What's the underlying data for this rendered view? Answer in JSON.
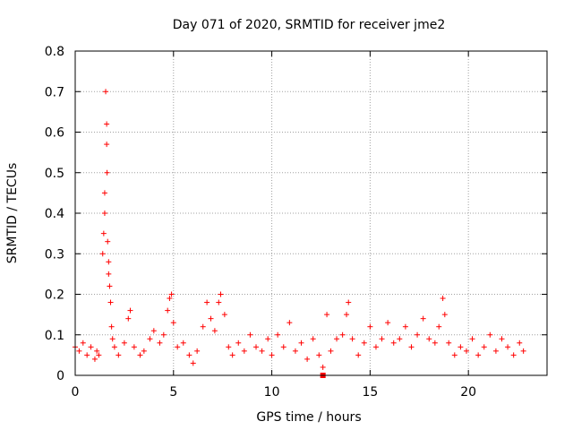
{
  "chart_data": {
    "type": "scatter",
    "title": "Day 071 of 2020, SRMTID for receiver jme2",
    "xlabel": "GPS time / hours",
    "ylabel": "SRMTID / TECUs",
    "xlim": [
      0,
      24
    ],
    "ylim": [
      0,
      0.8
    ],
    "xticks": [
      0,
      5,
      10,
      15,
      20
    ],
    "xtick_labels": [
      "0",
      "5",
      "10",
      "15",
      "20"
    ],
    "yticks": [
      0,
      0.1,
      0.2,
      0.3,
      0.4,
      0.5,
      0.6,
      0.7,
      0.8
    ],
    "ytick_labels": [
      "0",
      "0.1",
      "0.2",
      "0.3",
      "0.4",
      "0.5",
      "0.6",
      "0.7",
      "0.8"
    ],
    "grid": true,
    "marker": "+",
    "series_color": "#ff0000",
    "series": [
      {
        "name": "SRMTID",
        "points": [
          [
            0.0,
            0.07
          ],
          [
            0.2,
            0.06
          ],
          [
            0.4,
            0.08
          ],
          [
            0.6,
            0.05
          ],
          [
            0.8,
            0.07
          ],
          [
            1.0,
            0.04
          ],
          [
            1.1,
            0.06
          ],
          [
            1.2,
            0.05
          ],
          [
            1.4,
            0.3
          ],
          [
            1.45,
            0.35
          ],
          [
            1.5,
            0.4
          ],
          [
            1.5,
            0.45
          ],
          [
            1.55,
            0.7
          ],
          [
            1.6,
            0.62
          ],
          [
            1.6,
            0.57
          ],
          [
            1.62,
            0.5
          ],
          [
            1.65,
            0.33
          ],
          [
            1.7,
            0.28
          ],
          [
            1.7,
            0.25
          ],
          [
            1.75,
            0.22
          ],
          [
            1.8,
            0.18
          ],
          [
            1.85,
            0.12
          ],
          [
            1.9,
            0.09
          ],
          [
            2.0,
            0.07
          ],
          [
            2.2,
            0.05
          ],
          [
            2.5,
            0.08
          ],
          [
            2.7,
            0.14
          ],
          [
            2.8,
            0.16
          ],
          [
            3.0,
            0.07
          ],
          [
            3.3,
            0.05
          ],
          [
            3.5,
            0.06
          ],
          [
            3.8,
            0.09
          ],
          [
            4.0,
            0.11
          ],
          [
            4.3,
            0.08
          ],
          [
            4.5,
            0.1
          ],
          [
            4.7,
            0.16
          ],
          [
            4.8,
            0.19
          ],
          [
            4.9,
            0.2
          ],
          [
            5.0,
            0.13
          ],
          [
            5.2,
            0.07
          ],
          [
            5.5,
            0.08
          ],
          [
            5.8,
            0.05
          ],
          [
            6.0,
            0.03
          ],
          [
            6.2,
            0.06
          ],
          [
            6.5,
            0.12
          ],
          [
            6.7,
            0.18
          ],
          [
            6.9,
            0.14
          ],
          [
            7.1,
            0.11
          ],
          [
            7.3,
            0.18
          ],
          [
            7.4,
            0.2
          ],
          [
            7.6,
            0.15
          ],
          [
            7.8,
            0.07
          ],
          [
            8.0,
            0.05
          ],
          [
            8.3,
            0.08
          ],
          [
            8.6,
            0.06
          ],
          [
            8.9,
            0.1
          ],
          [
            9.2,
            0.07
          ],
          [
            9.5,
            0.06
          ],
          [
            9.8,
            0.09
          ],
          [
            10.0,
            0.05
          ],
          [
            10.3,
            0.1
          ],
          [
            10.6,
            0.07
          ],
          [
            10.9,
            0.13
          ],
          [
            11.2,
            0.06
          ],
          [
            11.5,
            0.08
          ],
          [
            11.8,
            0.04
          ],
          [
            12.1,
            0.09
          ],
          [
            12.4,
            0.05
          ],
          [
            12.6,
            0.02
          ],
          [
            12.8,
            0.15
          ],
          [
            13.0,
            0.06
          ],
          [
            13.3,
            0.09
          ],
          [
            13.6,
            0.1
          ],
          [
            13.8,
            0.15
          ],
          [
            13.9,
            0.18
          ],
          [
            14.1,
            0.09
          ],
          [
            14.4,
            0.05
          ],
          [
            14.7,
            0.08
          ],
          [
            15.0,
            0.12
          ],
          [
            15.3,
            0.07
          ],
          [
            15.6,
            0.09
          ],
          [
            15.9,
            0.13
          ],
          [
            16.2,
            0.08
          ],
          [
            16.5,
            0.09
          ],
          [
            16.8,
            0.12
          ],
          [
            17.1,
            0.07
          ],
          [
            17.4,
            0.1
          ],
          [
            17.7,
            0.14
          ],
          [
            18.0,
            0.09
          ],
          [
            18.3,
            0.08
          ],
          [
            18.5,
            0.12
          ],
          [
            18.7,
            0.19
          ],
          [
            18.8,
            0.15
          ],
          [
            19.0,
            0.08
          ],
          [
            19.3,
            0.05
          ],
          [
            19.6,
            0.07
          ],
          [
            19.9,
            0.06
          ],
          [
            20.2,
            0.09
          ],
          [
            20.5,
            0.05
          ],
          [
            20.8,
            0.07
          ],
          [
            21.1,
            0.1
          ],
          [
            21.4,
            0.06
          ],
          [
            21.7,
            0.09
          ],
          [
            22.0,
            0.07
          ],
          [
            22.3,
            0.05
          ],
          [
            22.6,
            0.08
          ],
          [
            22.8,
            0.06
          ]
        ]
      }
    ],
    "highlight_marker": {
      "x": 12.6,
      "y": 0.0,
      "shape": "filled-square"
    }
  }
}
